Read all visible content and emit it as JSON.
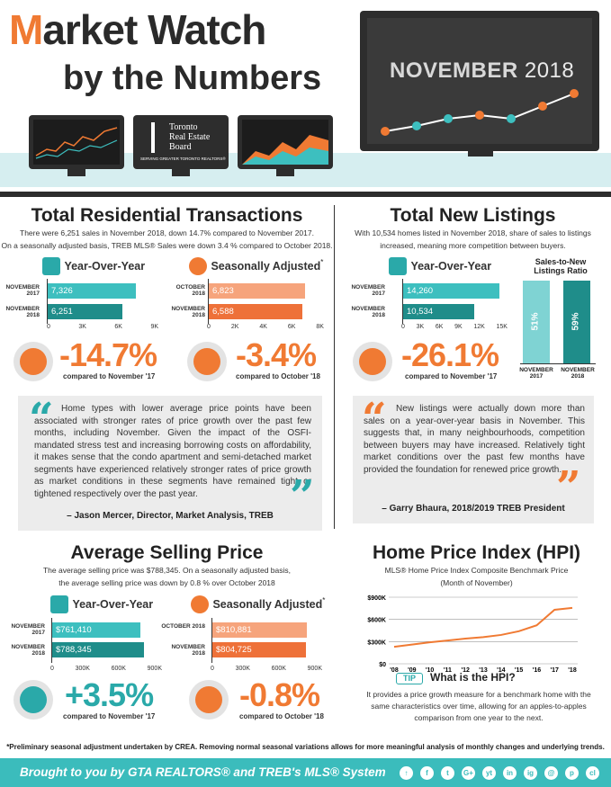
{
  "header": {
    "title_m": "M",
    "title_rest": "arket Watch",
    "subtitle": "by the Numbers",
    "month": "NOVEMBER",
    "year": "2018",
    "treb_l1": "Toronto",
    "treb_l2": "Real Estate",
    "treb_l3": "Board",
    "treb_tag": "SERVING GREATER TORONTO REALTORS®"
  },
  "transactions": {
    "title": "Total Residential Transactions",
    "line1": "There were 6,251 sales in November 2018, down 14.7% compared to November 2017.",
    "line2": "On a seasonally adjusted basis, TREB MLS® Sales were down 3.4 % compared to October 2018.",
    "yoy": {
      "label": "Year-Over-Year",
      "r1": "NOVEMBER 2017",
      "v1": "7,326",
      "f1": 0.814,
      "r2": "NOVEMBER 2018",
      "v2": "6,251",
      "f2": 0.695,
      "ticks": [
        "0",
        "3K",
        "6K",
        "9K"
      ],
      "pct": "-14.7%",
      "compare": "compared to November '17"
    },
    "sa": {
      "label": "Seasonally Adjusted",
      "r1": "OCTOBER 2018",
      "v1": "6,823",
      "f1": 0.853,
      "r2": "NOVEMBER 2018",
      "v2": "6,588",
      "f2": 0.824,
      "ticks": [
        "0",
        "2K",
        "4K",
        "6K",
        "8K"
      ],
      "pct": "-3.4%",
      "compare": "compared to October '18"
    }
  },
  "listings": {
    "title": "Total New Listings",
    "line1": "With 10,534 homes listed in November 2018, share of sales to listings",
    "line2": "increased, meaning more competition between buyers.",
    "yoy": {
      "label": "Year-Over-Year",
      "r1": "NOVEMBER 2017",
      "v1": "14,260",
      "f1": 0.951,
      "r2": "NOVEMBER 2018",
      "v2": "10,534",
      "f2": 0.702,
      "ticks": [
        "0",
        "3K",
        "6K",
        "9K",
        "12K",
        "15K"
      ],
      "pct": "-26.1%",
      "compare": "compared to November '17"
    },
    "ratio": {
      "title": "Sales-to-New Listings Ratio",
      "b1": "51%",
      "b2": "59%",
      "l1": "NOVEMBER 2017",
      "l2": "NOVEMBER 2018"
    }
  },
  "quote1": {
    "text": "Home types with lower average price points have been associated with stronger rates of price growth over the past few months, including November. Given the impact of the OSFI-mandated stress test and increasing borrowing costs on affordability, it makes sense that the condo apartment and semi-detached market segments have experienced relatively stronger rates of price growth as market conditions in these segments have remained tight or tightened respectively over the past year.",
    "author": "– Jason Mercer, Director, Market Analysis, TREB"
  },
  "quote2": {
    "text": "New listings were actually down more than sales on a year-over-year basis in November. This suggests that, in many neighbourhoods, competition between buyers may have increased. Relatively tight market conditions over the past few months have provided the foundation for renewed price growth.",
    "author": "– Garry Bhaura, 2018/2019 TREB President"
  },
  "price": {
    "title": "Average Selling Price",
    "line1": "The average selling price was $788,345. On a seasonally adjusted basis,",
    "line2": "the average selling price was down by 0.8 % over October 2018",
    "yoy": {
      "label": "Year-Over-Year",
      "r1": "NOVEMBER 2017",
      "v1": "$761,410",
      "f1": 0.846,
      "r2": "NOVEMBER 2018",
      "v2": "$788,345",
      "f2": 0.876,
      "ticks": [
        "0",
        "300K",
        "600K",
        "900K"
      ],
      "pct": "+3.5%",
      "compare": "compared to November '17"
    },
    "sa": {
      "label": "Seasonally Adjusted",
      "r1": "OCTOBER 2018",
      "v1": "$810,881",
      "f1": 0.901,
      "r2": "NOVEMBER 2018",
      "v2": "$804,725",
      "f2": 0.894,
      "ticks": [
        "0",
        "300K",
        "600K",
        "900K"
      ],
      "pct": "-0.8%",
      "compare": "compared to October '18"
    }
  },
  "hpi": {
    "title": "Home Price Index (HPI)",
    "line1": "MLS® Home Price Index Composite Benchmark Price",
    "line2": "(Month of November)",
    "tip": "TIP",
    "question": "What is the HPI?",
    "answer": "It provides a price growth measure for a benchmark home with the same characteristics over time, allowing for an apples-to-apples comparison from one year to the next."
  },
  "chart_data": {
    "type": "line",
    "x": [
      "'08",
      "'09",
      "'10",
      "'11",
      "'12",
      "'13",
      "'14",
      "'15",
      "'16",
      "'17",
      "'18"
    ],
    "series": [
      {
        "values": [
          230000,
          260000,
          290000,
          315000,
          340000,
          360000,
          390000,
          440000,
          520000,
          730000,
          755000
        ]
      }
    ],
    "yticks": [
      "$900K",
      "$600K",
      "$300K",
      "$0"
    ],
    "ylim": [
      0,
      900000
    ]
  },
  "footnote": "*Preliminary seasonal adjustment undertaken by CREA. Removing normal seasonal variations allows for more meaningful analysis of monthly changes and underlying trends.",
  "footer": {
    "text": "Brought to you by GTA REALTORS® and TREB's MLS® System",
    "social": [
      "f",
      "t",
      "G+",
      "yt",
      "in",
      "ig",
      "@",
      "p",
      "cl"
    ]
  }
}
